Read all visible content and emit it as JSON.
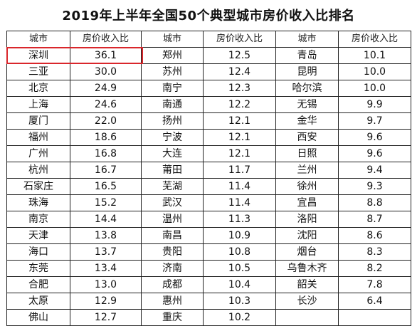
{
  "title": "2019年上半年全国50个典型城市房价收入比排名",
  "headers": [
    "城市",
    "房价收入比",
    "城市",
    "房价收入比",
    "城市",
    "房价收入比"
  ],
  "highlight_color": "#d9262b",
  "rows": [
    [
      "深圳",
      "36.1",
      "郑州",
      "12.5",
      "青岛",
      "10.1"
    ],
    [
      "三亚",
      "30.0",
      "苏州",
      "12.4",
      "昆明",
      "10.0"
    ],
    [
      "北京",
      "24.9",
      "南宁",
      "12.3",
      "哈尔滨",
      "10.0"
    ],
    [
      "上海",
      "24.6",
      "南通",
      "12.2",
      "无锡",
      "9.9"
    ],
    [
      "厦门",
      "22.0",
      "扬州",
      "12.1",
      "金华",
      "9.7"
    ],
    [
      "福州",
      "18.6",
      "宁波",
      "12.1",
      "西安",
      "9.6"
    ],
    [
      "广州",
      "16.8",
      "大连",
      "12.1",
      "日照",
      "9.6"
    ],
    [
      "杭州",
      "16.7",
      "莆田",
      "11.7",
      "兰州",
      "9.4"
    ],
    [
      "石家庄",
      "16.5",
      "芜湖",
      "11.4",
      "徐州",
      "9.3"
    ],
    [
      "珠海",
      "15.2",
      "武汉",
      "11.4",
      "宜昌",
      "8.8"
    ],
    [
      "南京",
      "14.4",
      "温州",
      "11.3",
      "洛阳",
      "8.7"
    ],
    [
      "天津",
      "13.8",
      "南昌",
      "10.9",
      "沈阳",
      "8.6"
    ],
    [
      "海口",
      "13.7",
      "贵阳",
      "10.8",
      "烟台",
      "8.3"
    ],
    [
      "东莞",
      "13.4",
      "济南",
      "10.5",
      "乌鲁木齐",
      "8.2"
    ],
    [
      "合肥",
      "13.0",
      "成都",
      "10.4",
      "韶关",
      "7.8"
    ],
    [
      "太原",
      "12.9",
      "惠州",
      "10.3",
      "长沙",
      "6.4"
    ],
    [
      "佛山",
      "12.7",
      "重庆",
      "10.2",
      "",
      ""
    ]
  ]
}
